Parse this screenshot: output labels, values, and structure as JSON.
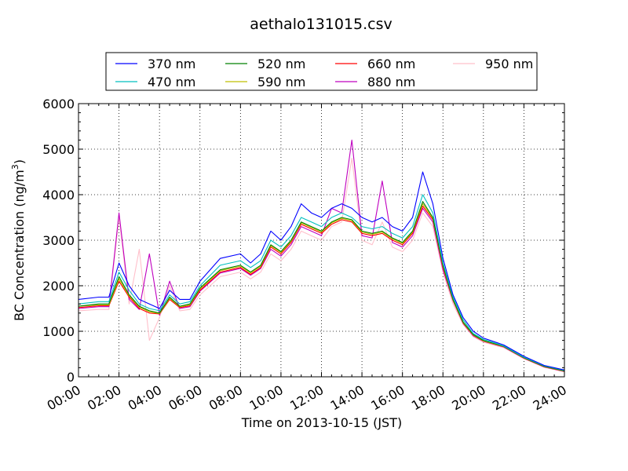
{
  "chart_data": {
    "type": "line",
    "title": "aethalo131015.csv",
    "xlabel": "Time on 2013-10-15 (JST)",
    "ylabel": "BC Concentration (ng/m",
    "ylabel_sup": "3",
    "ylabel_close": ")",
    "xlim": [
      "00:00",
      "24:00"
    ],
    "ylim": [
      0,
      6000
    ],
    "grid": true,
    "legend_placement": "top-center",
    "x_ticks": [
      "00:00",
      "02:00",
      "04:00",
      "06:00",
      "08:00",
      "10:00",
      "12:00",
      "14:00",
      "16:00",
      "18:00",
      "20:00",
      "22:00",
      "24:00"
    ],
    "y_ticks": [
      "0",
      "1000",
      "2000",
      "3000",
      "4000",
      "5000",
      "6000"
    ],
    "x": [
      "00:00",
      "01:00",
      "01:30",
      "02:00",
      "02:30",
      "03:00",
      "03:30",
      "04:00",
      "04:30",
      "05:00",
      "05:30",
      "06:00",
      "07:00",
      "08:00",
      "08:30",
      "09:00",
      "09:30",
      "10:00",
      "10:30",
      "11:00",
      "11:30",
      "12:00",
      "12:30",
      "13:00",
      "13:30",
      "14:00",
      "14:30",
      "15:00",
      "15:30",
      "16:00",
      "16:30",
      "17:00",
      "17:30",
      "18:00",
      "18:30",
      "19:00",
      "19:30",
      "20:00",
      "21:00",
      "22:00",
      "23:00",
      "24:00"
    ],
    "series": [
      {
        "name": "370 nm",
        "color": "#0000ff",
        "values": [
          1700,
          1750,
          1750,
          2500,
          2000,
          1700,
          1600,
          1500,
          1900,
          1700,
          1700,
          2100,
          2600,
          2700,
          2500,
          2700,
          3200,
          3000,
          3300,
          3800,
          3600,
          3500,
          3700,
          3800,
          3700,
          3500,
          3400,
          3500,
          3300,
          3200,
          3500,
          4500,
          3800,
          2600,
          1800,
          1300,
          1000,
          850,
          700,
          450,
          250,
          150
        ]
      },
      {
        "name": "470 nm",
        "color": "#00bfbf",
        "values": [
          1600,
          1650,
          1650,
          2300,
          1900,
          1600,
          1500,
          1450,
          1800,
          1600,
          1650,
          2000,
          2450,
          2550,
          2400,
          2550,
          3000,
          2850,
          3100,
          3500,
          3400,
          3300,
          3500,
          3600,
          3500,
          3300,
          3250,
          3300,
          3150,
          3050,
          3300,
          4000,
          3600,
          2500,
          1750,
          1250,
          950,
          820,
          680,
          430,
          240,
          140
        ]
      },
      {
        "name": "520 nm",
        "color": "#008000",
        "values": [
          1550,
          1600,
          1600,
          2200,
          1800,
          1550,
          1450,
          1400,
          1750,
          1550,
          1600,
          1950,
          2350,
          2450,
          2300,
          2450,
          2900,
          2750,
          3000,
          3400,
          3300,
          3200,
          3400,
          3500,
          3450,
          3200,
          3150,
          3200,
          3050,
          2950,
          3200,
          3850,
          3500,
          2450,
          1700,
          1200,
          930,
          800,
          670,
          420,
          230,
          130
        ]
      },
      {
        "name": "590 nm",
        "color": "#bfbf00",
        "values": [
          1550,
          1580,
          1580,
          2150,
          1780,
          1530,
          1430,
          1390,
          1730,
          1540,
          1580,
          1930,
          2330,
          2430,
          2280,
          2430,
          2880,
          2730,
          2980,
          3380,
          3280,
          3180,
          3380,
          3480,
          3430,
          3180,
          3130,
          3180,
          3030,
          2930,
          3180,
          3800,
          3480,
          2430,
          1690,
          1190,
          920,
          790,
          665,
          415,
          225,
          125
        ]
      },
      {
        "name": "660 nm",
        "color": "#ff0000",
        "values": [
          1520,
          1560,
          1560,
          2100,
          1750,
          1500,
          1400,
          1380,
          1700,
          1520,
          1560,
          1900,
          2300,
          2400,
          2250,
          2400,
          2850,
          2700,
          2950,
          3350,
          3250,
          3150,
          3350,
          3450,
          3400,
          3150,
          3100,
          3150,
          3000,
          2900,
          3150,
          3750,
          3450,
          2400,
          1680,
          1180,
          910,
          785,
          660,
          410,
          220,
          120
        ]
      },
      {
        "name": "880 nm",
        "color": "#bf00bf",
        "values": [
          1500,
          1540,
          1540,
          3600,
          1700,
          1480,
          2700,
          1350,
          2100,
          1500,
          1540,
          1880,
          2280,
          2380,
          2230,
          2380,
          2800,
          2650,
          2900,
          3300,
          3200,
          3100,
          3700,
          3600,
          5200,
          3100,
          3050,
          4300,
          2950,
          2850,
          3100,
          3700,
          3400,
          2350,
          1670,
          1170,
          900,
          780,
          655,
          405,
          215,
          115
        ]
      },
      {
        "name": "950 nm",
        "color": "#ffc0cb",
        "values": [
          1450,
          1480,
          1480,
          3500,
          1600,
          2800,
          800,
          1300,
          2000,
          1450,
          1480,
          1800,
          2200,
          2300,
          2150,
          2300,
          2700,
          2550,
          2800,
          3200,
          3100,
          3000,
          3300,
          3400,
          4800,
          3000,
          2900,
          3400,
          2850,
          2750,
          3000,
          3600,
          3300,
          2300,
          1600,
          1150,
          880,
          760,
          640,
          400,
          210,
          110
        ]
      }
    ]
  }
}
